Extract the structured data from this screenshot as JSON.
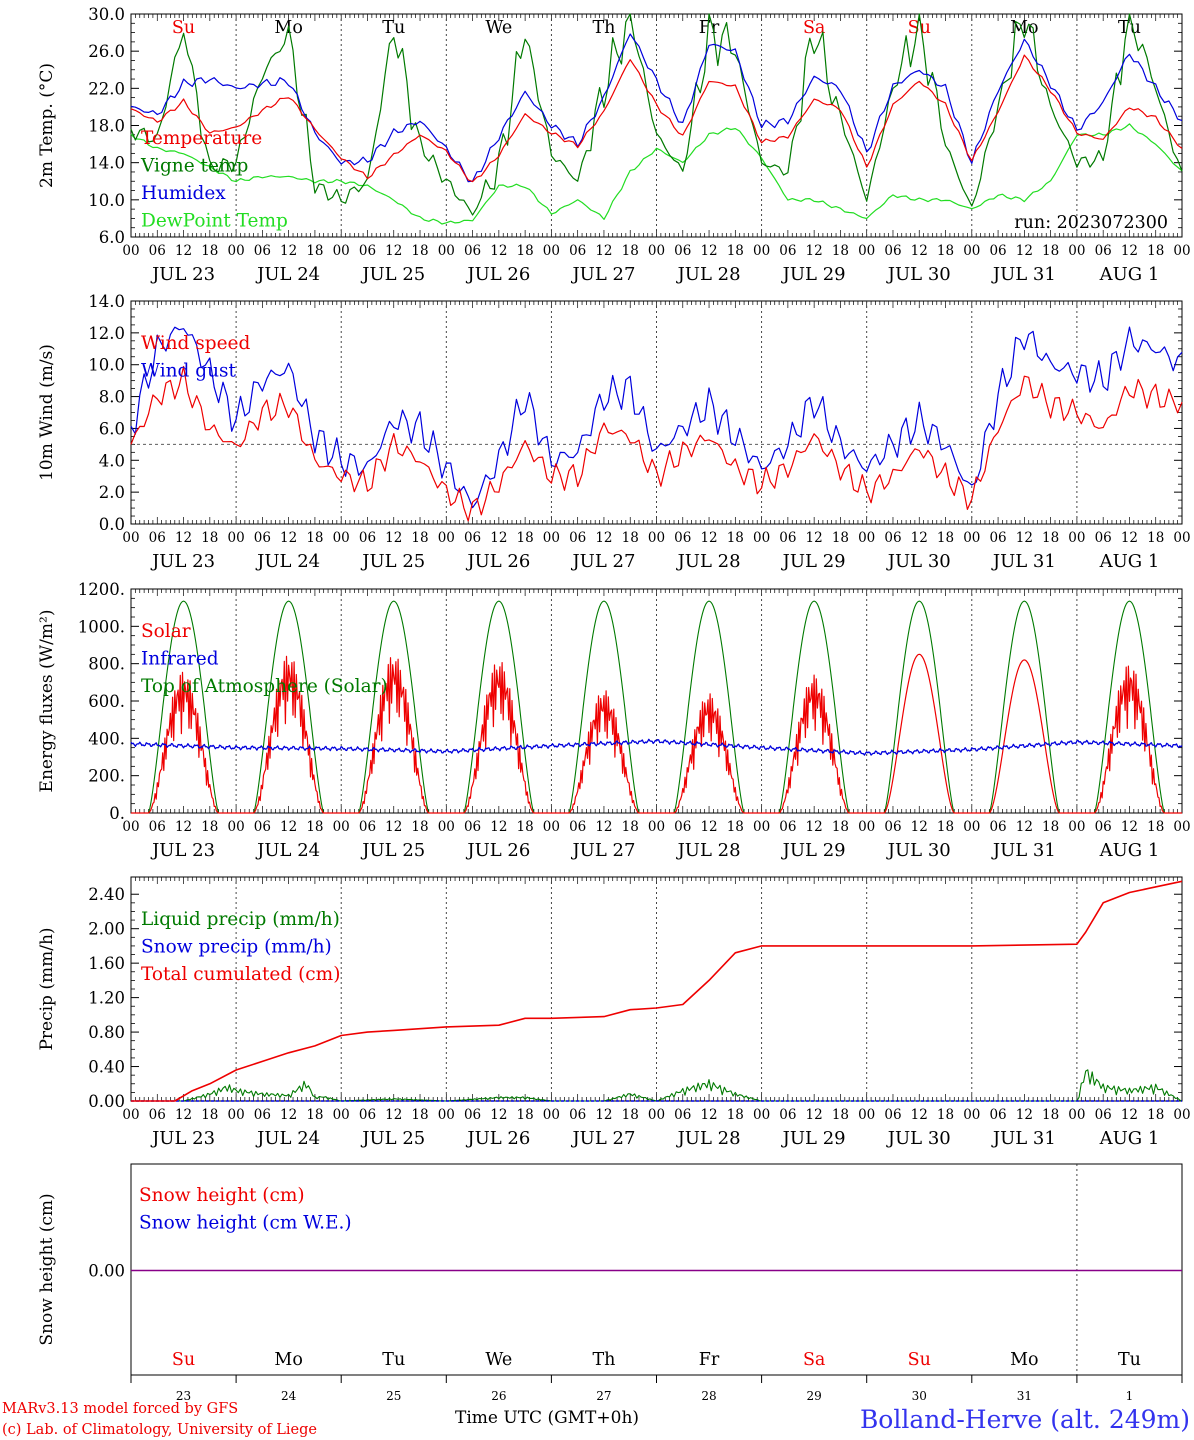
{
  "colors": {
    "red": "#ee0000",
    "green": "#007a00",
    "blue": "#0000dd",
    "lime": "#22dd22",
    "purple": "#880088",
    "black": "#000000"
  },
  "xaxis": {
    "hour_labels": [
      "00",
      "06",
      "12",
      "18"
    ],
    "end_label": "00",
    "date_labels": [
      "JUL 23",
      "JUL 24",
      "JUL 25",
      "JUL 26",
      "JUL 27",
      "JUL 28",
      "JUL 29",
      "JUL 30",
      "JUL 31",
      "AUG  1"
    ],
    "day_names": [
      "Su",
      "Mo",
      "Tu",
      "We",
      "Th",
      "Fr",
      "Sa",
      "Su",
      "Mo",
      "Tu"
    ],
    "day_name_colors": [
      "red",
      "black",
      "black",
      "black",
      "black",
      "black",
      "red",
      "red",
      "black",
      "black"
    ],
    "day_numbers": [
      "23",
      "24",
      "25",
      "26",
      "27",
      "28",
      "29",
      "30",
      "31",
      "1"
    ]
  },
  "footer": {
    "model_line1": "MARv3.13 model forced by GFS",
    "model_line2": "(c) Lab. of Climatology, University of Liege",
    "time_label": "Time UTC (GMT+0h)",
    "station": "Bolland-Herve (alt. 249m)"
  },
  "chart_data": [
    {
      "id": "temperature",
      "type": "line",
      "ylabel": "2m Temp. (°C)",
      "ylim": [
        6,
        30
      ],
      "yticks": [
        "6.0",
        "10.0",
        "14.0",
        "18.0",
        "22.0",
        "26.0",
        "30.0"
      ],
      "annotation": "run: 2023072300",
      "legend": [
        {
          "label": "Temperature",
          "color": "red"
        },
        {
          "label": "Vigne temp",
          "color": "green"
        },
        {
          "label": "Humidex",
          "color": "blue"
        },
        {
          "label": "DewPoint Temp",
          "color": "lime"
        }
      ],
      "x_hours": [
        0,
        6,
        12,
        18,
        24,
        30,
        36,
        42,
        48,
        54,
        60,
        66,
        72,
        78,
        84,
        90,
        96,
        102,
        108,
        114,
        120,
        126,
        132,
        138,
        144,
        150,
        156,
        162,
        168,
        174,
        180,
        186,
        192,
        198,
        204,
        210,
        216,
        222,
        228,
        234,
        240
      ],
      "series": [
        {
          "name": "Temperature",
          "color": "red",
          "values": [
            19.8,
            18.4,
            20.6,
            17.2,
            17.8,
            19.6,
            21.2,
            17.6,
            14.5,
            12.4,
            14.8,
            17.0,
            15.2,
            11.8,
            14.8,
            19.2,
            17.2,
            15.8,
            19.5,
            25.2,
            20.2,
            16.8,
            22.8,
            22.2,
            16.2,
            16.8,
            20.8,
            19.8,
            13.5,
            20.2,
            22.8,
            20.2,
            14.2,
            19.5,
            25.5,
            21.8,
            17.2,
            16.5,
            20.0,
            18.8,
            15.5
          ]
        },
        {
          "name": "Vigne temp",
          "color": "green",
          "values": [
            17.5,
            16.5,
            28.5,
            13.5,
            14.0,
            23.5,
            28.0,
            11.5,
            10.0,
            12.0,
            28.5,
            16.0,
            12.0,
            8.5,
            13.5,
            28.0,
            15.0,
            12.0,
            22.0,
            30.0,
            17.0,
            13.0,
            28.0,
            26.0,
            14.0,
            13.0,
            28.5,
            19.0,
            10.0,
            22.0,
            29.0,
            16.0,
            9.0,
            20.0,
            30.0,
            20.0,
            14.0,
            14.5,
            30.0,
            22.0,
            12.5
          ]
        },
        {
          "name": "Humidex",
          "color": "blue",
          "values": [
            20.0,
            19.2,
            22.5,
            23.0,
            22.0,
            22.5,
            22.8,
            17.2,
            14.0,
            14.2,
            17.2,
            18.5,
            15.5,
            11.8,
            16.8,
            21.6,
            18.0,
            16.0,
            21.0,
            28.0,
            22.8,
            18.0,
            26.8,
            26.0,
            18.0,
            18.5,
            23.2,
            22.0,
            15.0,
            22.2,
            24.0,
            22.0,
            14.0,
            21.8,
            27.2,
            22.5,
            17.5,
            20.5,
            25.8,
            22.0,
            18.5
          ]
        },
        {
          "name": "DewPoint Temp",
          "color": "lime",
          "values": [
            17.0,
            15.5,
            15.0,
            13.5,
            12.0,
            12.5,
            12.5,
            12.0,
            12.0,
            11.5,
            10.0,
            8.0,
            7.5,
            7.8,
            11.5,
            11.5,
            8.5,
            10.0,
            8.0,
            13.0,
            15.5,
            14.0,
            17.0,
            17.8,
            14.5,
            10.0,
            10.0,
            9.0,
            8.0,
            10.5,
            10.0,
            10.0,
            9.0,
            10.5,
            10.0,
            12.0,
            17.0,
            17.0,
            18.0,
            16.0,
            13.0
          ]
        }
      ]
    },
    {
      "id": "wind",
      "type": "line",
      "ylabel": "10m Wind (m/s)",
      "ylim": [
        0,
        14
      ],
      "yticks": [
        "0.0",
        "2.0",
        "4.0",
        "6.0",
        "8.0",
        "10.0",
        "12.0",
        "14.0"
      ],
      "reference_line": 5,
      "legend": [
        {
          "label": "Wind speed",
          "color": "red"
        },
        {
          "label": "Wind gust",
          "color": "blue"
        }
      ],
      "x_hours": [
        0,
        6,
        12,
        18,
        24,
        30,
        36,
        42,
        48,
        54,
        60,
        66,
        72,
        78,
        84,
        90,
        96,
        102,
        108,
        114,
        120,
        126,
        132,
        138,
        144,
        150,
        156,
        162,
        168,
        174,
        180,
        186,
        192,
        198,
        204,
        210,
        216,
        222,
        228,
        234,
        240
      ],
      "series": [
        {
          "name": "Wind speed",
          "color": "red",
          "values": [
            5.0,
            8.0,
            9.0,
            6.0,
            4.8,
            7.0,
            7.5,
            4.0,
            3.0,
            2.5,
            5.0,
            4.0,
            2.0,
            0.8,
            2.5,
            5.0,
            3.0,
            3.0,
            6.0,
            5.5,
            3.0,
            4.5,
            5.5,
            3.5,
            2.5,
            3.5,
            5.5,
            3.5,
            2.0,
            3.0,
            4.8,
            3.0,
            1.5,
            6.0,
            9.0,
            7.5,
            7.0,
            6.0,
            8.5,
            8.0,
            7.5
          ]
        },
        {
          "name": "Wind gust",
          "color": "blue",
          "values": [
            6.0,
            11.0,
            12.5,
            9.5,
            6.5,
            9.0,
            9.8,
            5.5,
            4.0,
            3.5,
            6.5,
            6.0,
            3.5,
            1.2,
            4.0,
            8.0,
            4.0,
            4.5,
            8.0,
            8.5,
            4.5,
            6.0,
            7.5,
            5.5,
            3.5,
            5.0,
            7.8,
            5.0,
            3.5,
            5.0,
            6.5,
            5.0,
            2.0,
            8.0,
            12.0,
            10.0,
            9.5,
            9.0,
            11.5,
            11.0,
            10.0
          ]
        }
      ]
    },
    {
      "id": "energy",
      "type": "line",
      "ylabel": "Energy fluxes (W/m²)",
      "ylim": [
        0,
        1200
      ],
      "yticks": [
        "0.",
        "200.",
        "400.",
        "600.",
        "800.",
        "1000.",
        "1200."
      ],
      "legend": [
        {
          "label": "Solar",
          "color": "red"
        },
        {
          "label": "Infrared",
          "color": "blue"
        },
        {
          "label": "Top of Atmosphere (Solar)",
          "color": "green"
        }
      ],
      "daylight_hours": [
        4,
        20
      ],
      "toa_peak": 1135,
      "solar_peaks": [
        760,
        850,
        850,
        820,
        660,
        640,
        740,
        850,
        820,
        800
      ],
      "infrared_daily": [
        370,
        350,
        345,
        330,
        360,
        385,
        350,
        320,
        340,
        380,
        360
      ]
    },
    {
      "id": "precip",
      "type": "line",
      "ylabel": "Precip (mm/h)",
      "ylim": [
        0,
        2.6
      ],
      "yticks": [
        "0.00",
        "0.40",
        "0.80",
        "1.20",
        "1.60",
        "2.00",
        "2.40"
      ],
      "legend": [
        {
          "label": "Liquid precip (mm/h)",
          "color": "green"
        },
        {
          "label": "Snow precip (mm/h)",
          "color": "blue"
        },
        {
          "label": "Total cumulated (cm)",
          "color": "red"
        }
      ],
      "cumulated": {
        "x_hours": [
          0,
          10,
          14,
          18,
          24,
          30,
          36,
          42,
          48,
          54,
          60,
          72,
          84,
          90,
          96,
          108,
          114,
          120,
          126,
          132,
          138,
          144,
          168,
          192,
          216,
          218,
          222,
          228,
          240
        ],
        "values": [
          0,
          0,
          0.12,
          0.2,
          0.36,
          0.46,
          0.56,
          0.64,
          0.76,
          0.8,
          0.82,
          0.86,
          0.88,
          0.96,
          0.96,
          0.98,
          1.06,
          1.08,
          1.12,
          1.4,
          1.72,
          1.8,
          1.8,
          1.8,
          1.82,
          1.96,
          2.3,
          2.42,
          2.55
        ]
      },
      "liquid": {
        "x_hours": [
          0,
          12,
          18,
          22,
          24,
          30,
          36,
          40,
          42,
          44,
          48,
          60,
          72,
          84,
          90,
          96,
          108,
          114,
          120,
          126,
          132,
          138,
          144,
          168,
          192,
          216,
          218,
          222,
          228,
          234,
          240
        ],
        "values": [
          0,
          0,
          0.1,
          0.2,
          0.15,
          0.1,
          0.08,
          0.25,
          0.05,
          0.06,
          0,
          0.03,
          0,
          0.05,
          0.05,
          0,
          0,
          0.1,
          0,
          0.15,
          0.25,
          0.1,
          0,
          0,
          0,
          0,
          0.42,
          0.2,
          0.15,
          0.2,
          0
        ]
      }
    },
    {
      "id": "snow",
      "type": "line",
      "ylabel": "Snow height (cm)",
      "yticks": [
        "0.00"
      ],
      "legend": [
        {
          "label": "Snow height (cm)",
          "color": "red"
        },
        {
          "label": "Snow height (cm W.E.)",
          "color": "blue"
        }
      ],
      "value": 0.0
    }
  ]
}
